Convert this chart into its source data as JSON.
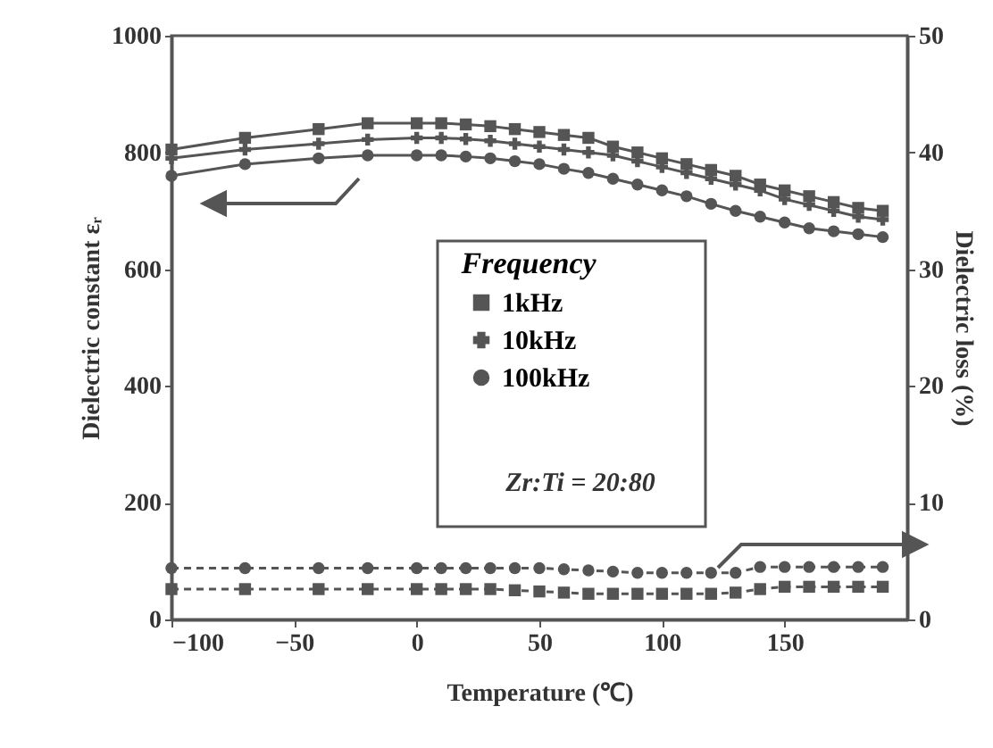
{
  "chart_data": {
    "type": "line",
    "xlabel": "Temperature (℃)",
    "ylabel": "Dielectric constant εᵣ",
    "y2label": "Dielectric loss (%)",
    "legend_title": "Frequency",
    "legend": "right",
    "annotations": [
      "Zr:Ti = 20:80"
    ],
    "x": [
      -100,
      -70,
      -40,
      -20,
      0,
      10,
      20,
      30,
      40,
      50,
      60,
      70,
      80,
      90,
      100,
      110,
      120,
      130,
      140,
      150,
      160,
      170,
      180,
      190
    ],
    "xlim": [
      -100,
      200
    ],
    "xticks": [
      -100,
      -50,
      0,
      50,
      100,
      150
    ],
    "ylim": [
      0,
      1000
    ],
    "yticks": [
      0,
      200,
      400,
      600,
      800,
      1000
    ],
    "y2lim": [
      0,
      50
    ],
    "y2ticks": [
      0,
      10,
      20,
      30,
      40,
      50
    ],
    "series": [
      {
        "name": "1kHz",
        "color": "#555555",
        "marker": "square",
        "line_style": "solid",
        "values": [
          805,
          825,
          840,
          850,
          850,
          850,
          848,
          845,
          840,
          835,
          830,
          825,
          810,
          800,
          790,
          780,
          770,
          760,
          745,
          735,
          725,
          715,
          705,
          700
        ]
      },
      {
        "name": "10kHz",
        "color": "#555555",
        "marker": "cross",
        "line_style": "solid",
        "values": [
          790,
          805,
          815,
          822,
          825,
          825,
          823,
          820,
          815,
          810,
          805,
          800,
          795,
          785,
          775,
          765,
          755,
          745,
          735,
          720,
          710,
          700,
          690,
          685
        ]
      },
      {
        "name": "100kHz",
        "color": "#555555",
        "marker": "circle",
        "line_style": "solid",
        "values": [
          760,
          780,
          790,
          795,
          795,
          795,
          793,
          790,
          785,
          780,
          772,
          765,
          755,
          745,
          735,
          725,
          712,
          700,
          690,
          680,
          670,
          665,
          660,
          655
        ]
      },
      {
        "color": "#555555",
        "marker": "square",
        "line_style": "dashed",
        "axis": "y2",
        "values": [
          2.6,
          2.6,
          2.6,
          2.6,
          2.6,
          2.6,
          2.6,
          2.6,
          2.5,
          2.4,
          2.3,
          2.2,
          2.2,
          2.2,
          2.2,
          2.2,
          2.2,
          2.3,
          2.6,
          2.8,
          2.8,
          2.8,
          2.8,
          2.8
        ]
      },
      {
        "color": "#555555",
        "marker": "circle",
        "line_style": "dashed",
        "axis": "y2",
        "values": [
          4.4,
          4.4,
          4.4,
          4.4,
          4.4,
          4.4,
          4.4,
          4.4,
          4.4,
          4.4,
          4.3,
          4.2,
          4.1,
          4.0,
          4.0,
          4.0,
          4.0,
          4.0,
          4.5,
          4.5,
          4.5,
          4.5,
          4.5,
          4.5
        ]
      }
    ]
  }
}
